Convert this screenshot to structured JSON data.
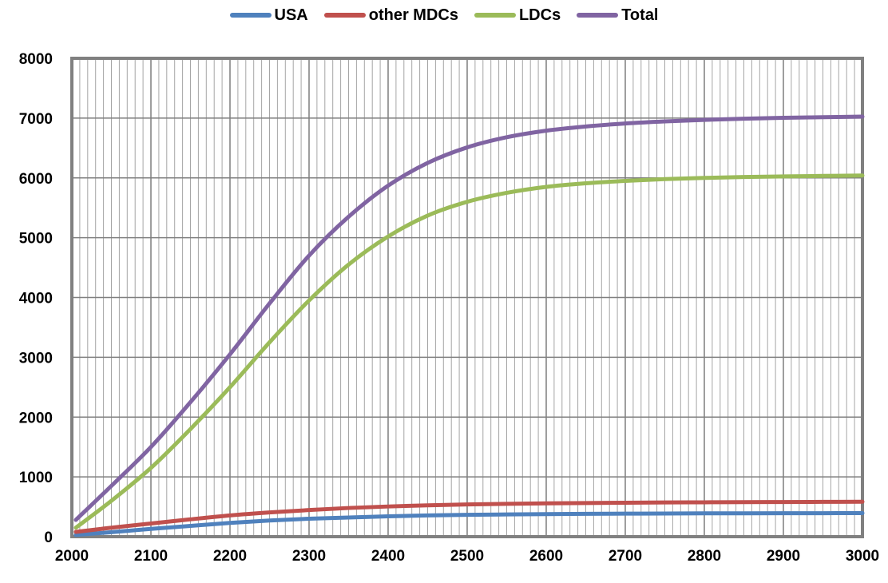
{
  "chart_data": {
    "type": "line",
    "title": "",
    "xlabel": "",
    "ylabel": "",
    "xlim": [
      2000,
      3000
    ],
    "ylim": [
      0,
      8000
    ],
    "x_ticks": [
      "2000",
      "2100",
      "2200",
      "2300",
      "2400",
      "2500",
      "2600",
      "2700",
      "2800",
      "2900",
      "3000"
    ],
    "y_ticks": [
      "0",
      "1000",
      "2000",
      "3000",
      "4000",
      "5000",
      "6000",
      "7000",
      "8000"
    ],
    "grid": true,
    "legend_position": "top",
    "x": [
      2005,
      2050,
      2100,
      2150,
      2200,
      2250,
      2300,
      2350,
      2400,
      2450,
      2500,
      2550,
      2600,
      2650,
      2700,
      2750,
      2800,
      2850,
      2900,
      2950,
      3000
    ],
    "series": [
      {
        "name": "USA",
        "color": "#4f81bd",
        "values": [
          30,
          75,
          130,
          180,
          230,
          270,
          300,
          320,
          340,
          355,
          365,
          372,
          378,
          382,
          385,
          388,
          390,
          391,
          392,
          393,
          394
        ]
      },
      {
        "name": "other MDCs",
        "color": "#c0504d",
        "values": [
          80,
          150,
          220,
          290,
          355,
          405,
          445,
          480,
          505,
          525,
          540,
          550,
          557,
          563,
          568,
          572,
          575,
          578,
          580,
          582,
          584
        ]
      },
      {
        "name": "LDCs",
        "color": "#9bbb59",
        "values": [
          150,
          600,
          1150,
          1800,
          2500,
          3250,
          3950,
          4550,
          5020,
          5370,
          5600,
          5750,
          5850,
          5910,
          5950,
          5980,
          6000,
          6015,
          6025,
          6033,
          6040
        ]
      },
      {
        "name": "Total",
        "color": "#8064a2",
        "values": [
          280,
          850,
          1500,
          2250,
          3050,
          3900,
          4700,
          5350,
          5870,
          6250,
          6510,
          6680,
          6790,
          6860,
          6910,
          6945,
          6970,
          6990,
          7005,
          7015,
          7025
        ]
      }
    ]
  }
}
